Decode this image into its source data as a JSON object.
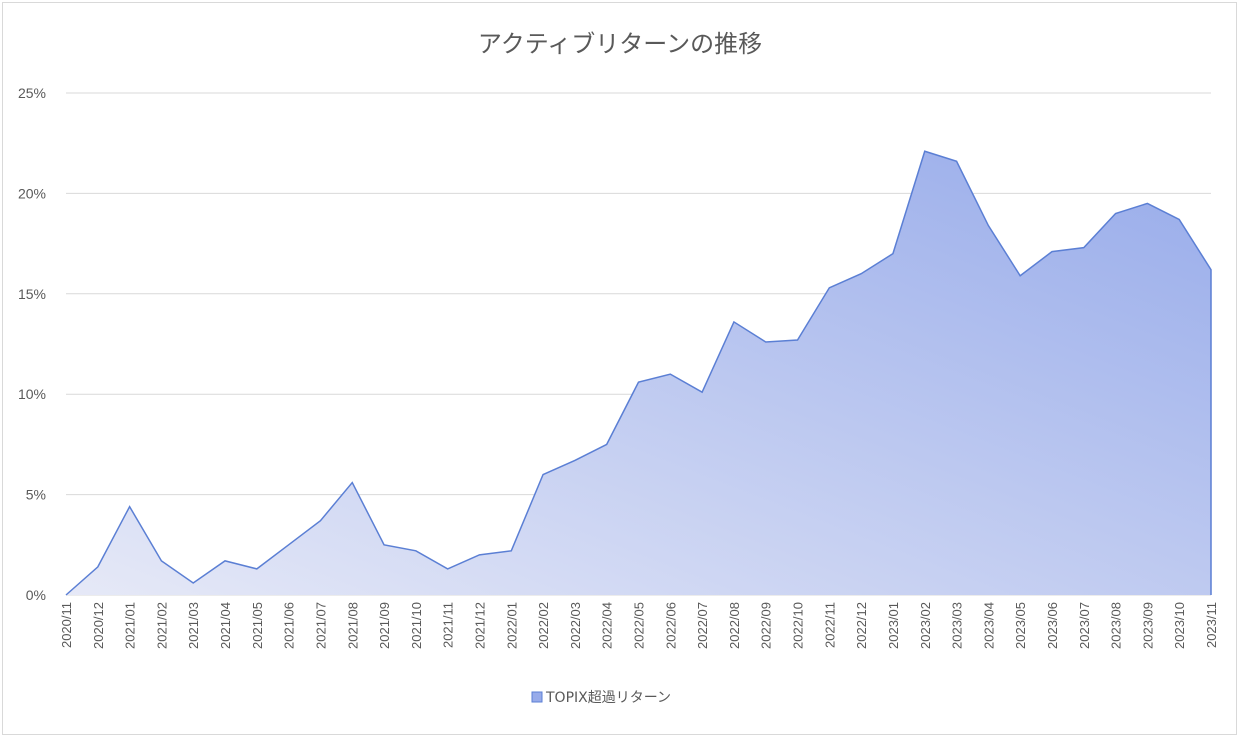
{
  "chart_data": {
    "type": "area",
    "title": "アクティブリターンの推移",
    "xlabel": "",
    "ylabel": "",
    "ylim": [
      0,
      0.25
    ],
    "y_ticks": [
      "0%",
      "5%",
      "10%",
      "15%",
      "20%",
      "25%"
    ],
    "y_tick_values": [
      0,
      0.05,
      0.1,
      0.15,
      0.2,
      0.25
    ],
    "grid": true,
    "legend_position": "bottom",
    "categories": [
      "2020/11",
      "2020/12",
      "2021/01",
      "2021/02",
      "2021/03",
      "2021/04",
      "2021/05",
      "2021/06",
      "2021/07",
      "2021/08",
      "2021/09",
      "2021/10",
      "2021/11",
      "2021/12",
      "2022/01",
      "2022/02",
      "2022/03",
      "2022/04",
      "2022/05",
      "2022/06",
      "2022/07",
      "2022/08",
      "2022/09",
      "2022/10",
      "2022/11",
      "2022/12",
      "2023/01",
      "2023/02",
      "2023/03",
      "2023/04",
      "2023/05",
      "2023/06",
      "2023/07",
      "2023/08",
      "2023/09",
      "2023/10",
      "2023/11"
    ],
    "series": [
      {
        "name": "TOPIX超過リターン",
        "values": [
          0.0,
          0.014,
          0.044,
          0.017,
          0.006,
          0.017,
          0.013,
          0.025,
          0.037,
          0.056,
          0.025,
          0.022,
          0.013,
          0.02,
          0.022,
          0.06,
          0.067,
          0.075,
          0.106,
          0.11,
          0.101,
          0.136,
          0.126,
          0.127,
          0.153,
          0.16,
          0.17,
          0.221,
          0.216,
          0.184,
          0.159,
          0.171,
          0.173,
          0.19,
          0.195,
          0.187,
          0.162
        ]
      }
    ],
    "colors": {
      "line": "#5b7fd4",
      "fill_start": "#e6e9f7",
      "fill_end": "#97abea",
      "grid": "#d9d9d9",
      "text": "#595959"
    }
  }
}
